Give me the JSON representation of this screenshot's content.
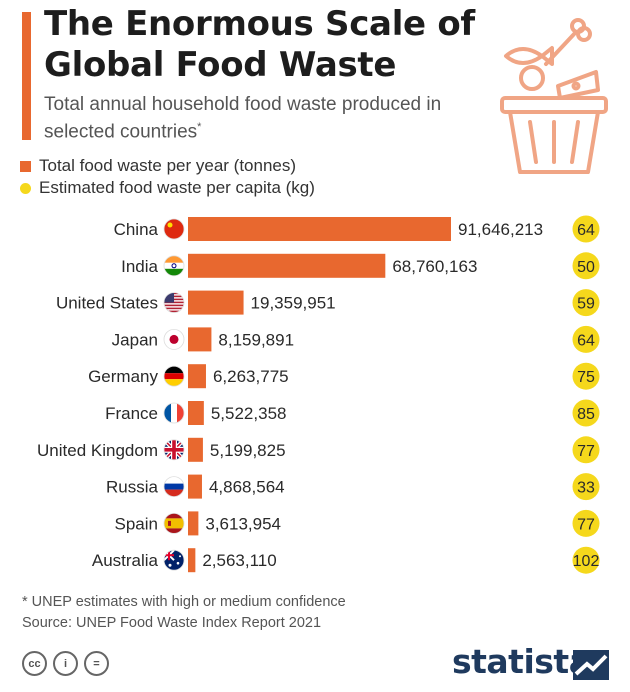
{
  "header": {
    "title": "The Enormous Scale of Global Food Waste",
    "subtitle": "Total annual household food waste produced in selected countries",
    "subtitle_mark": "*"
  },
  "legend": {
    "total": "Total food waste per year (tonnes)",
    "per_capita": "Estimated food waste per capita (kg)"
  },
  "colors": {
    "bar": "#e8682f",
    "per_capita_dot": "#f5d81c",
    "brand": "#1f3a5e"
  },
  "chart_data": {
    "type": "bar",
    "orientation": "horizontal",
    "categories": [
      "China",
      "India",
      "United States",
      "Japan",
      "Germany",
      "France",
      "United Kingdom",
      "Russia",
      "Spain",
      "Australia"
    ],
    "series": [
      {
        "name": "Total food waste per year (tonnes)",
        "values": [
          91646213,
          68760163,
          19359951,
          8159891,
          6263775,
          5522358,
          5199825,
          4868564,
          3613954,
          2563110
        ],
        "labels": [
          "91,646,213",
          "68,760,163",
          "19,359,951",
          "8,159,891",
          "6,263,775",
          "5,522,358",
          "5,199,825",
          "4,868,564",
          "3,613,954",
          "2,563,110"
        ]
      },
      {
        "name": "Estimated food waste per capita (kg)",
        "values": [
          64,
          50,
          59,
          64,
          75,
          85,
          77,
          33,
          77,
          102
        ]
      }
    ],
    "flags": [
      "flag-china-icon",
      "flag-india-icon",
      "flag-united-states-icon",
      "flag-japan-icon",
      "flag-germany-icon",
      "flag-france-icon",
      "flag-united-kingdom-icon",
      "flag-russia-icon",
      "flag-spain-icon",
      "flag-australia-icon"
    ]
  },
  "footer": {
    "note": "* UNEP estimates with high or medium confidence",
    "source": "Source: UNEP Food Waste Index Report 2021",
    "license_icons": [
      "cc-icon",
      "by-icon",
      "nd-icon"
    ],
    "license_glyphs": [
      "cc",
      "i",
      "="
    ],
    "brand": "statista"
  }
}
